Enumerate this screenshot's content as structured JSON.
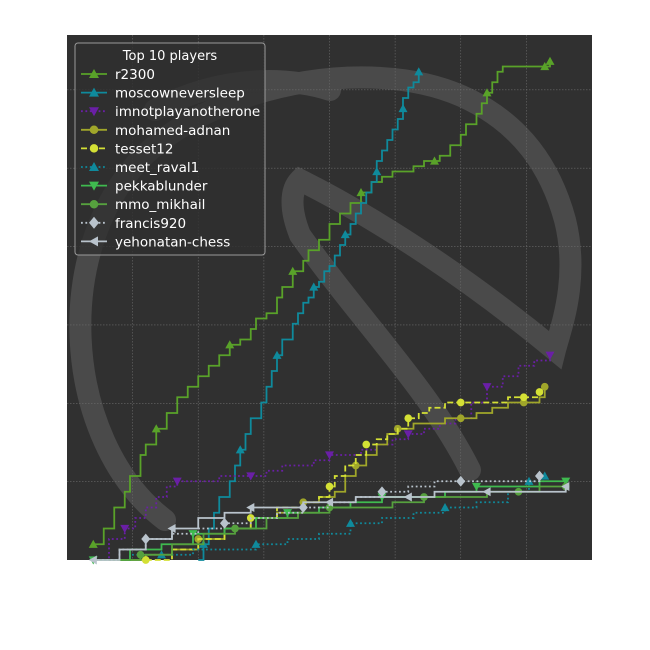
{
  "chart_data": {
    "type": "line",
    "x_range": [
      0,
      100
    ],
    "y_range": [
      0,
      100
    ],
    "grid": true,
    "legend": {
      "title": "Top 10 players",
      "placement": "top-left"
    },
    "background_color": "#303030",
    "grid_color": "#6a6a6a",
    "watermark": "knight-logo",
    "series": [
      {
        "name": "r2300",
        "color": "#59a229",
        "style": "solid",
        "marker": "triangle-up",
        "points": [
          [
            5,
            3
          ],
          [
            7,
            6
          ],
          [
            9,
            10
          ],
          [
            11,
            13
          ],
          [
            12,
            16
          ],
          [
            14,
            20
          ],
          [
            15,
            22
          ],
          [
            17,
            25
          ],
          [
            19,
            28
          ],
          [
            21,
            31
          ],
          [
            23,
            33
          ],
          [
            25,
            35
          ],
          [
            27,
            37
          ],
          [
            29,
            39
          ],
          [
            31,
            41
          ],
          [
            33,
            42
          ],
          [
            35,
            44
          ],
          [
            36,
            46
          ],
          [
            38,
            47
          ],
          [
            40,
            50
          ],
          [
            41,
            52
          ],
          [
            43,
            55
          ],
          [
            45,
            57
          ],
          [
            46,
            59
          ],
          [
            48,
            61
          ],
          [
            50,
            64
          ],
          [
            52,
            66
          ],
          [
            54,
            68
          ],
          [
            56,
            70
          ],
          [
            58,
            72
          ],
          [
            60,
            73
          ],
          [
            62,
            74
          ],
          [
            64,
            74
          ],
          [
            66,
            75
          ],
          [
            68,
            76
          ],
          [
            70,
            76
          ],
          [
            71,
            77
          ],
          [
            73,
            79
          ],
          [
            75,
            81
          ],
          [
            76,
            83
          ],
          [
            78,
            85
          ],
          [
            79,
            87
          ],
          [
            80,
            89
          ],
          [
            81,
            91
          ],
          [
            82,
            93
          ],
          [
            83,
            94
          ],
          [
            85,
            94
          ],
          [
            87,
            94
          ],
          [
            89,
            94
          ],
          [
            91,
            94
          ],
          [
            92,
            95
          ]
        ]
      },
      {
        "name": "moscowneversleep",
        "color": "#0f8a9c",
        "style": "solid",
        "marker": "triangle-up",
        "points": [
          [
            25,
            0
          ],
          [
            26,
            3
          ],
          [
            27,
            6
          ],
          [
            28,
            9
          ],
          [
            29,
            12
          ],
          [
            31,
            15
          ],
          [
            32,
            18
          ],
          [
            33,
            21
          ],
          [
            34,
            24
          ],
          [
            35,
            27
          ],
          [
            37,
            30
          ],
          [
            38,
            33
          ],
          [
            39,
            36
          ],
          [
            40,
            39
          ],
          [
            41,
            42
          ],
          [
            43,
            45
          ],
          [
            44,
            47
          ],
          [
            45,
            49
          ],
          [
            46,
            50
          ],
          [
            47,
            52
          ],
          [
            48,
            53
          ],
          [
            49,
            55
          ],
          [
            50,
            56
          ],
          [
            51,
            58
          ],
          [
            52,
            60
          ],
          [
            53,
            62
          ],
          [
            54,
            64
          ],
          [
            55,
            66
          ],
          [
            56,
            68
          ],
          [
            57,
            70
          ],
          [
            58,
            72
          ],
          [
            59,
            74
          ],
          [
            59,
            76
          ],
          [
            60,
            78
          ],
          [
            61,
            80
          ],
          [
            62,
            82
          ],
          [
            63,
            84
          ],
          [
            64,
            86
          ],
          [
            64,
            88
          ],
          [
            65,
            90
          ],
          [
            66,
            91
          ],
          [
            67,
            93
          ]
        ]
      },
      {
        "name": "imnotplayanotherone",
        "color": "#6a1fa6",
        "style": "dotted",
        "marker": "triangle-down",
        "points": [
          [
            5,
            0
          ],
          [
            8,
            4
          ],
          [
            11,
            6
          ],
          [
            13,
            8
          ],
          [
            15,
            10
          ],
          [
            17,
            12
          ],
          [
            19,
            14
          ],
          [
            21,
            15
          ],
          [
            23,
            15
          ],
          [
            26,
            15
          ],
          [
            29,
            16
          ],
          [
            32,
            16
          ],
          [
            35,
            16
          ],
          [
            38,
            17
          ],
          [
            41,
            18
          ],
          [
            44,
            18
          ],
          [
            47,
            19
          ],
          [
            50,
            20
          ],
          [
            53,
            20
          ],
          [
            56,
            21
          ],
          [
            59,
            22
          ],
          [
            62,
            23
          ],
          [
            65,
            24
          ],
          [
            68,
            25
          ],
          [
            71,
            26
          ],
          [
            74,
            27
          ],
          [
            77,
            30
          ],
          [
            80,
            33
          ],
          [
            83,
            35
          ],
          [
            86,
            37
          ],
          [
            89,
            38
          ],
          [
            92,
            39
          ]
        ]
      },
      {
        "name": "mohamed-adnan",
        "color": "#a0a62a",
        "style": "solid",
        "marker": "circle",
        "points": [
          [
            10,
            0
          ],
          [
            15,
            1
          ],
          [
            20,
            2
          ],
          [
            25,
            4
          ],
          [
            30,
            6
          ],
          [
            35,
            8
          ],
          [
            40,
            9
          ],
          [
            45,
            11
          ],
          [
            48,
            12
          ],
          [
            51,
            13
          ],
          [
            53,
            16
          ],
          [
            55,
            18
          ],
          [
            57,
            20
          ],
          [
            59,
            22
          ],
          [
            61,
            24
          ],
          [
            63,
            25
          ],
          [
            66,
            26
          ],
          [
            69,
            26
          ],
          [
            72,
            27
          ],
          [
            75,
            27
          ],
          [
            78,
            28
          ],
          [
            81,
            29
          ],
          [
            84,
            30
          ],
          [
            87,
            30
          ],
          [
            90,
            31
          ],
          [
            91,
            33
          ]
        ]
      },
      {
        "name": "tesset12",
        "color": "#d4e035",
        "style": "dashed",
        "marker": "circle",
        "points": [
          [
            15,
            0
          ],
          [
            20,
            2
          ],
          [
            25,
            4
          ],
          [
            30,
            6
          ],
          [
            35,
            8
          ],
          [
            40,
            10
          ],
          [
            45,
            11
          ],
          [
            48,
            12
          ],
          [
            50,
            14
          ],
          [
            51,
            16
          ],
          [
            53,
            18
          ],
          [
            55,
            20
          ],
          [
            57,
            22
          ],
          [
            59,
            23
          ],
          [
            61,
            24
          ],
          [
            63,
            25
          ],
          [
            65,
            27
          ],
          [
            67,
            28
          ],
          [
            69,
            29
          ],
          [
            72,
            30
          ],
          [
            75,
            30
          ],
          [
            78,
            30
          ],
          [
            81,
            30
          ],
          [
            84,
            31
          ],
          [
            87,
            31
          ],
          [
            90,
            32
          ]
        ]
      },
      {
        "name": "meet_raval1",
        "color": "#0f8a9c",
        "style": "dotted",
        "marker": "triangle-up",
        "points": [
          [
            5,
            0
          ],
          [
            12,
            1
          ],
          [
            18,
            1
          ],
          [
            24,
            2
          ],
          [
            30,
            2
          ],
          [
            36,
            3
          ],
          [
            42,
            4
          ],
          [
            48,
            5
          ],
          [
            54,
            7
          ],
          [
            60,
            8
          ],
          [
            66,
            9
          ],
          [
            72,
            10
          ],
          [
            78,
            11
          ],
          [
            84,
            13
          ],
          [
            88,
            15
          ],
          [
            91,
            16
          ]
        ]
      },
      {
        "name": "pekkablunder",
        "color": "#3fba4f",
        "style": "solid",
        "marker": "triangle-down",
        "points": [
          [
            5,
            0
          ],
          [
            12,
            2
          ],
          [
            18,
            3
          ],
          [
            24,
            5
          ],
          [
            30,
            6
          ],
          [
            36,
            8
          ],
          [
            42,
            9
          ],
          [
            48,
            10
          ],
          [
            54,
            11
          ],
          [
            60,
            12
          ],
          [
            66,
            12
          ],
          [
            72,
            13
          ],
          [
            78,
            14
          ],
          [
            84,
            14
          ],
          [
            90,
            15
          ],
          [
            95,
            15
          ]
        ]
      },
      {
        "name": "mmo_mikhail",
        "color": "#56a13e",
        "style": "solid",
        "marker": "circle",
        "points": [
          [
            8,
            0
          ],
          [
            14,
            1
          ],
          [
            20,
            3
          ],
          [
            26,
            5
          ],
          [
            32,
            6
          ],
          [
            38,
            8
          ],
          [
            44,
            9
          ],
          [
            50,
            10
          ],
          [
            56,
            10
          ],
          [
            62,
            11
          ],
          [
            68,
            12
          ],
          [
            74,
            12
          ],
          [
            80,
            13
          ],
          [
            86,
            13
          ],
          [
            90,
            14
          ],
          [
            95,
            14
          ]
        ]
      },
      {
        "name": "francis920",
        "color": "#b9c3cc",
        "style": "dotted",
        "marker": "diamond",
        "points": [
          [
            5,
            0
          ],
          [
            10,
            2
          ],
          [
            15,
            4
          ],
          [
            20,
            5
          ],
          [
            25,
            6
          ],
          [
            30,
            7
          ],
          [
            35,
            8
          ],
          [
            40,
            9
          ],
          [
            45,
            10
          ],
          [
            50,
            11
          ],
          [
            55,
            12
          ],
          [
            60,
            13
          ],
          [
            65,
            14
          ],
          [
            70,
            15
          ],
          [
            75,
            15
          ],
          [
            80,
            15
          ],
          [
            85,
            15
          ],
          [
            90,
            16
          ]
        ]
      },
      {
        "name": "yehonatan-chess",
        "color": "#b9c3cc",
        "style": "solid",
        "marker": "triangle-left",
        "points": [
          [
            5,
            0
          ],
          [
            10,
            2
          ],
          [
            15,
            4
          ],
          [
            20,
            6
          ],
          [
            25,
            8
          ],
          [
            30,
            9
          ],
          [
            35,
            10
          ],
          [
            40,
            10
          ],
          [
            45,
            11
          ],
          [
            50,
            11
          ],
          [
            55,
            12
          ],
          [
            60,
            12
          ],
          [
            65,
            12
          ],
          [
            70,
            13
          ],
          [
            75,
            13
          ],
          [
            80,
            13
          ],
          [
            85,
            13
          ],
          [
            90,
            13
          ],
          [
            95,
            14
          ]
        ]
      }
    ]
  }
}
